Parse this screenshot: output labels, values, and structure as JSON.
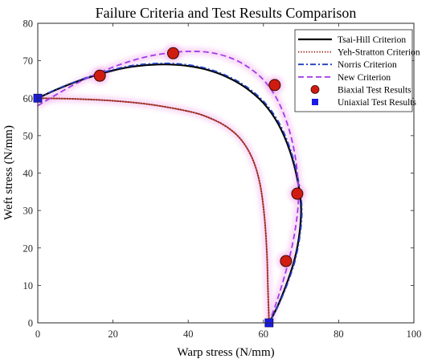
{
  "chart_data": {
    "type": "line",
    "title": "Failure Criteria and Test Results Comparison",
    "xlabel": "Warp stress (N/mm)",
    "ylabel": "Weft stress (N/mm)",
    "xlim": [
      0,
      100
    ],
    "ylim": [
      0,
      80
    ],
    "xticks": [
      0,
      20,
      40,
      60,
      80,
      100
    ],
    "yticks": [
      0,
      10,
      20,
      30,
      40,
      50,
      60,
      70,
      80
    ],
    "grid": false,
    "legend": "top-right",
    "series": [
      {
        "name": "Tsai-Hill Criterion",
        "style": "solid",
        "color": "#000000",
        "points": [
          [
            0,
            60
          ],
          [
            5,
            62.3
          ],
          [
            10,
            64.3
          ],
          [
            15,
            66.0
          ],
          [
            20,
            67.4
          ],
          [
            25,
            68.4
          ],
          [
            30,
            68.9
          ],
          [
            35,
            69.0
          ],
          [
            40,
            68.6
          ],
          [
            45,
            67.6
          ],
          [
            50,
            65.8
          ],
          [
            55,
            63.0
          ],
          [
            60,
            58.7
          ],
          [
            64,
            53.0
          ],
          [
            67,
            46.0
          ],
          [
            69,
            38.5
          ],
          [
            70,
            31.0
          ],
          [
            69.6,
            24.0
          ],
          [
            68.3,
            17.0
          ],
          [
            66.2,
            10.5
          ],
          [
            63.8,
            4.5
          ],
          [
            61.5,
            0
          ]
        ]
      },
      {
        "name": "Yeh-Stratton Criterion",
        "style": "dotted",
        "color": "#9b2d1f",
        "points": [
          [
            0,
            60
          ],
          [
            10,
            59.8
          ],
          [
            20,
            59.3
          ],
          [
            30,
            58.3
          ],
          [
            40,
            56.5
          ],
          [
            45,
            55.0
          ],
          [
            50,
            52.5
          ],
          [
            54,
            49.0
          ],
          [
            57,
            44.0
          ],
          [
            59,
            37.5
          ],
          [
            60.2,
            29.0
          ],
          [
            60.9,
            19.0
          ],
          [
            61.2,
            9.0
          ],
          [
            61.5,
            0
          ]
        ]
      },
      {
        "name": "Norris Criterion",
        "style": "dashdot",
        "color": "#1f3fbf",
        "points": [
          [
            0,
            60
          ],
          [
            5,
            62.4
          ],
          [
            10,
            64.4
          ],
          [
            15,
            66.2
          ],
          [
            20,
            67.6
          ],
          [
            25,
            68.7
          ],
          [
            30,
            69.2
          ],
          [
            35,
            69.3
          ],
          [
            40,
            68.9
          ],
          [
            45,
            67.9
          ],
          [
            50,
            66.1
          ],
          [
            55,
            63.4
          ],
          [
            60,
            59.2
          ],
          [
            64,
            53.7
          ],
          [
            67,
            46.8
          ],
          [
            69.1,
            39.0
          ],
          [
            70.2,
            31.0
          ],
          [
            69.8,
            24.0
          ],
          [
            68.5,
            17.0
          ],
          [
            66.4,
            10.5
          ],
          [
            63.9,
            4.5
          ],
          [
            61.5,
            0
          ]
        ]
      },
      {
        "name": "New Criterion",
        "style": "dashed",
        "color": "#a23be8",
        "points": [
          [
            0,
            58
          ],
          [
            5,
            61.0
          ],
          [
            10,
            63.8
          ],
          [
            15,
            66.2
          ],
          [
            20,
            68.3
          ],
          [
            25,
            70.0
          ],
          [
            30,
            71.3
          ],
          [
            35,
            72.1
          ],
          [
            40,
            72.5
          ],
          [
            45,
            72.3
          ],
          [
            50,
            71.2
          ],
          [
            55,
            68.9
          ],
          [
            60,
            64.9
          ],
          [
            64,
            59.0
          ],
          [
            67,
            51.0
          ],
          [
            68.8,
            42.0
          ],
          [
            69.3,
            33.0
          ],
          [
            68.3,
            24.0
          ],
          [
            66.3,
            15.0
          ],
          [
            63.8,
            6.5
          ],
          [
            61.5,
            0
          ]
        ]
      }
    ],
    "scatter": [
      {
        "name": "Biaxial Test Results",
        "marker": "circle",
        "color": "#d01c10",
        "points": [
          [
            16.5,
            66
          ],
          [
            36,
            72
          ],
          [
            63,
            63.5
          ],
          [
            69,
            34.5
          ],
          [
            66,
            16.5
          ]
        ]
      },
      {
        "name": "Uniaxial Test Results",
        "marker": "square",
        "color": "#1a1ae6",
        "points": [
          [
            0,
            60
          ],
          [
            61.5,
            0
          ]
        ]
      }
    ]
  }
}
